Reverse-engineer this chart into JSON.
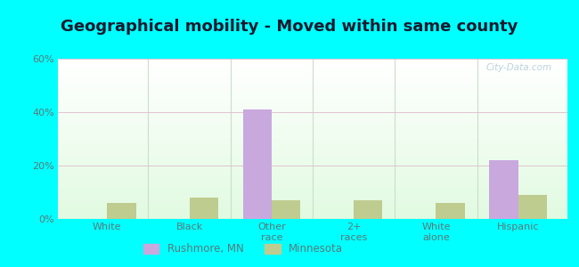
{
  "title": "Geographical mobility - Moved within same county",
  "categories": [
    "White",
    "Black",
    "Other\nrace",
    "2+\nraces",
    "White\nalone",
    "Hispanic"
  ],
  "rushmore_values": [
    0,
    0,
    41,
    0,
    0,
    22
  ],
  "minnesota_values": [
    6,
    8,
    7,
    7,
    6,
    9
  ],
  "rushmore_color": "#c9a8de",
  "minnesota_color": "#bfcc8f",
  "ylim": [
    0,
    60
  ],
  "yticks": [
    0,
    20,
    40,
    60
  ],
  "ytick_labels": [
    "0%",
    "20%",
    "40%",
    "60%"
  ],
  "background_color": "#00ffff",
  "legend_labels": [
    "Rushmore, MN",
    "Minnesota"
  ],
  "bar_width": 0.35,
  "title_fontsize": 13,
  "watermark": "City-Data.com"
}
